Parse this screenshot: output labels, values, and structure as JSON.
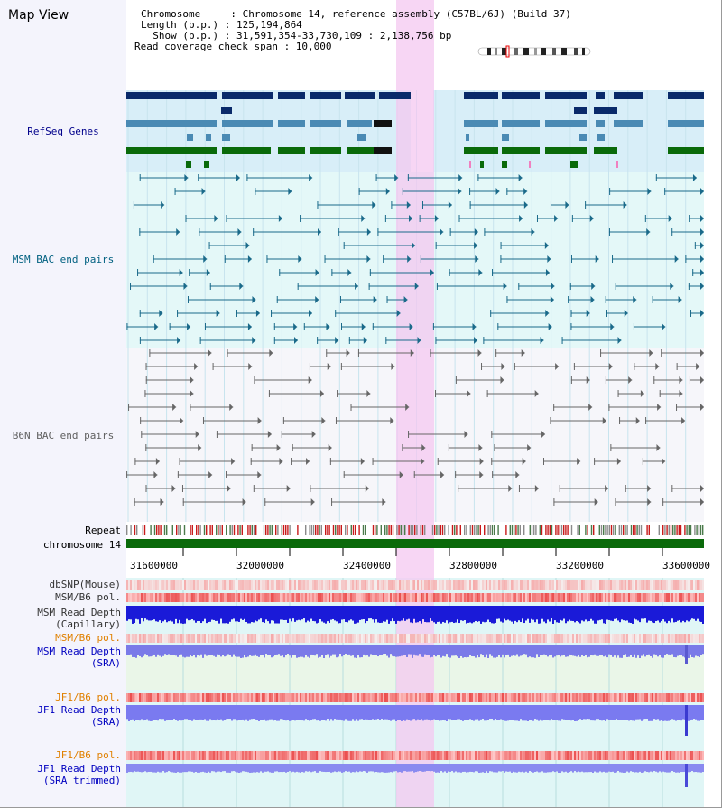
{
  "page": {
    "title": "Map View"
  },
  "header": {
    "chromosome_line": "Chromosome     : Chromosome 14, reference assembly (C57BL/6J) (Build 37)",
    "length_line": "Length (b.p.) : 125,194,864",
    "show_line": "  Show (b.p.) : 31,591,354-33,730,109 : 2,138,756 bp",
    "coverage_line": "Read coverage check span : 10,000"
  },
  "tracks": {
    "refseq": {
      "label": "RefSeq Genes",
      "color": "#00008b"
    },
    "msm_bac": {
      "label": "MSM BAC end pairs",
      "color": "#006080"
    },
    "b6n_bac": {
      "label": "B6N BAC end pairs",
      "color": "#606060"
    },
    "repeat": {
      "label": "Repeat"
    },
    "chromosome": {
      "label": "chromosome 14"
    },
    "dbsnp": {
      "label": "dbSNP(Mouse)"
    },
    "msm_b6_pol": {
      "label": "MSM/B6 pol."
    },
    "msm_depth_cap": {
      "label_1": "MSM Read Depth",
      "label_2": "(Capillary)"
    },
    "msm_b6_pol2": {
      "label": "MSM/B6 pol.",
      "color": "#e08000"
    },
    "msm_depth_sra": {
      "label_1": "MSM Read Depth",
      "label_2": "(SRA)",
      "color": "#0000c0"
    },
    "jf1_b6_pol": {
      "label": "JF1/B6 pol.",
      "color": "#e08000"
    },
    "jf1_depth_sra": {
      "label_1": "JF1 Read Depth",
      "label_2": "(SRA)",
      "color": "#0000c0"
    },
    "jf1_b6_pol2": {
      "label": "JF1/B6 pol.",
      "color": "#e08000"
    },
    "jf1_depth_trim": {
      "label_1": "JF1 Read Depth",
      "label_2": "(SRA trimmed)",
      "color": "#0000c0"
    }
  },
  "axis": {
    "ticks": [
      "31600000",
      "32000000",
      "32400000",
      "32800000",
      "33200000",
      "33600000"
    ]
  }
}
